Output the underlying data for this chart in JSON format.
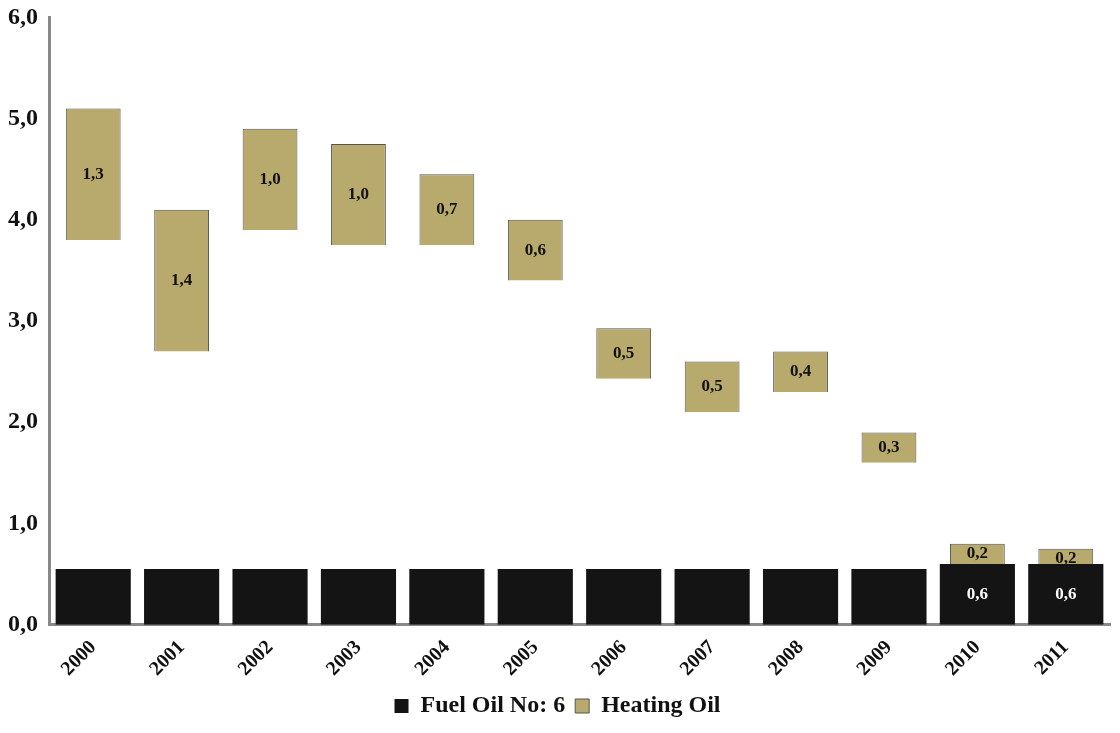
{
  "chart_data": {
    "type": "bar",
    "categories": [
      "2000",
      "2001",
      "2002",
      "2003",
      "2004",
      "2005",
      "2006",
      "2007",
      "2008",
      "2009",
      "2010",
      "2011"
    ],
    "series": [
      {
        "name": "Fuel Oil No: 6",
        "color": "#141414",
        "values": [
          0.55,
          0.55,
          0.55,
          0.55,
          0.55,
          0.55,
          0.55,
          0.55,
          0.55,
          0.55,
          0.6,
          0.6
        ],
        "value_labels": [
          null,
          null,
          null,
          null,
          null,
          null,
          null,
          null,
          null,
          null,
          "0,6",
          "0,6"
        ]
      },
      {
        "name": "Heating Oil",
        "color": "#b8a96c",
        "values": [
          1.3,
          1.4,
          1.0,
          1.0,
          0.7,
          0.6,
          0.5,
          0.5,
          0.4,
          0.3,
          0.2,
          0.2
        ],
        "base": [
          3.8,
          2.7,
          3.9,
          3.75,
          3.75,
          3.4,
          2.43,
          2.1,
          2.3,
          1.6,
          0.6,
          0.55
        ],
        "value_labels": [
          "1,3",
          "1,4",
          "1,0",
          "1,0",
          "0,7",
          "0,6",
          "0,5",
          "0,5",
          "0,4",
          "0,3",
          "0,2",
          "0,2"
        ]
      }
    ],
    "ylim": [
      0,
      6
    ],
    "yticks": [
      {
        "value": 0,
        "label": "0,0"
      },
      {
        "value": 1,
        "label": "1,0"
      },
      {
        "value": 2,
        "label": "2,0"
      },
      {
        "value": 3,
        "label": "3,0"
      },
      {
        "value": 4,
        "label": "4,0"
      },
      {
        "value": 5,
        "label": "5,0"
      },
      {
        "value": 6,
        "label": "6,0"
      }
    ],
    "legend": "bottom"
  }
}
